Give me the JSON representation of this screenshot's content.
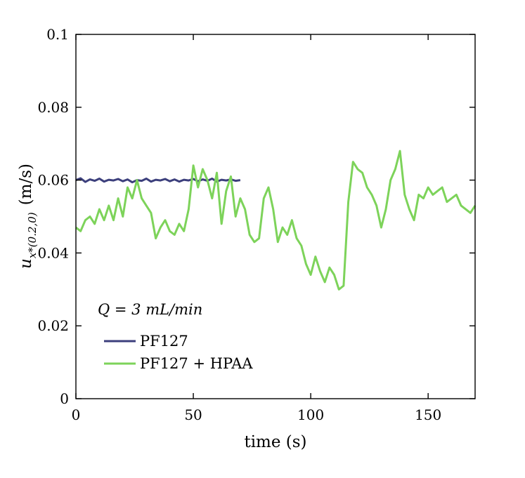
{
  "chart_data": {
    "type": "line",
    "title": "",
    "xlabel": "time (s)",
    "ylabel_symbol": "u",
    "ylabel_subscript": "x*(0.2,0)",
    "ylabel_unit": "(m/s)",
    "xlim": [
      0,
      170
    ],
    "ylim": [
      0,
      0.1
    ],
    "x_ticks": [
      0,
      50,
      100,
      150
    ],
    "x_tick_labels": [
      "0",
      "50",
      "100",
      "150"
    ],
    "y_ticks": [
      0,
      0.02,
      0.04,
      0.06,
      0.08,
      0.1
    ],
    "y_tick_labels": [
      "0",
      "0.02",
      "0.04",
      "0.06",
      "0.08",
      "0.1"
    ],
    "grid": false,
    "legend_position": "bottom-left",
    "legend_title": "Q = 3 mL/min",
    "series": [
      {
        "name": "PF127",
        "color": "#3c3f7c",
        "x": [
          0,
          2,
          4,
          6,
          8,
          10,
          12,
          14,
          16,
          18,
          20,
          22,
          24,
          26,
          28,
          30,
          32,
          34,
          36,
          38,
          40,
          42,
          44,
          46,
          48,
          50,
          52,
          54,
          56,
          58,
          60,
          62,
          64,
          66,
          68,
          70
        ],
        "y": [
          0.06,
          0.0605,
          0.0595,
          0.0602,
          0.0598,
          0.0604,
          0.0596,
          0.0601,
          0.0599,
          0.0603,
          0.0597,
          0.0602,
          0.0594,
          0.06,
          0.0598,
          0.0604,
          0.0596,
          0.0601,
          0.0599,
          0.0603,
          0.0597,
          0.0602,
          0.0596,
          0.0601,
          0.0599,
          0.0603,
          0.0597,
          0.0602,
          0.0598,
          0.0604,
          0.0596,
          0.0601,
          0.0599,
          0.0602,
          0.0598,
          0.06
        ]
      },
      {
        "name": "PF127 + HPAA",
        "color": "#7dd35a",
        "x": [
          0,
          2,
          4,
          6,
          8,
          10,
          12,
          14,
          16,
          18,
          20,
          22,
          24,
          26,
          28,
          30,
          32,
          34,
          36,
          38,
          40,
          42,
          44,
          46,
          48,
          50,
          52,
          54,
          56,
          58,
          60,
          62,
          64,
          66,
          68,
          70,
          72,
          74,
          76,
          78,
          80,
          82,
          84,
          86,
          88,
          90,
          92,
          94,
          96,
          98,
          100,
          102,
          104,
          106,
          108,
          110,
          112,
          114,
          116,
          118,
          120,
          122,
          124,
          126,
          128,
          130,
          132,
          134,
          136,
          138,
          140,
          142,
          144,
          146,
          148,
          150,
          152,
          154,
          156,
          158,
          160,
          162,
          164,
          166,
          168,
          170
        ],
        "y": [
          0.047,
          0.046,
          0.049,
          0.05,
          0.048,
          0.052,
          0.049,
          0.053,
          0.049,
          0.055,
          0.05,
          0.058,
          0.055,
          0.06,
          0.055,
          0.053,
          0.051,
          0.044,
          0.047,
          0.049,
          0.046,
          0.045,
          0.048,
          0.046,
          0.052,
          0.064,
          0.058,
          0.063,
          0.06,
          0.055,
          0.062,
          0.048,
          0.057,
          0.061,
          0.05,
          0.055,
          0.052,
          0.045,
          0.043,
          0.044,
          0.055,
          0.058,
          0.052,
          0.043,
          0.047,
          0.045,
          0.049,
          0.044,
          0.042,
          0.037,
          0.034,
          0.039,
          0.035,
          0.032,
          0.036,
          0.034,
          0.03,
          0.031,
          0.054,
          0.065,
          0.063,
          0.062,
          0.058,
          0.056,
          0.053,
          0.047,
          0.052,
          0.06,
          0.063,
          0.068,
          0.056,
          0.052,
          0.049,
          0.056,
          0.055,
          0.058,
          0.056,
          0.057,
          0.058,
          0.054,
          0.055,
          0.056,
          0.053,
          0.052,
          0.051,
          0.053
        ]
      }
    ]
  }
}
